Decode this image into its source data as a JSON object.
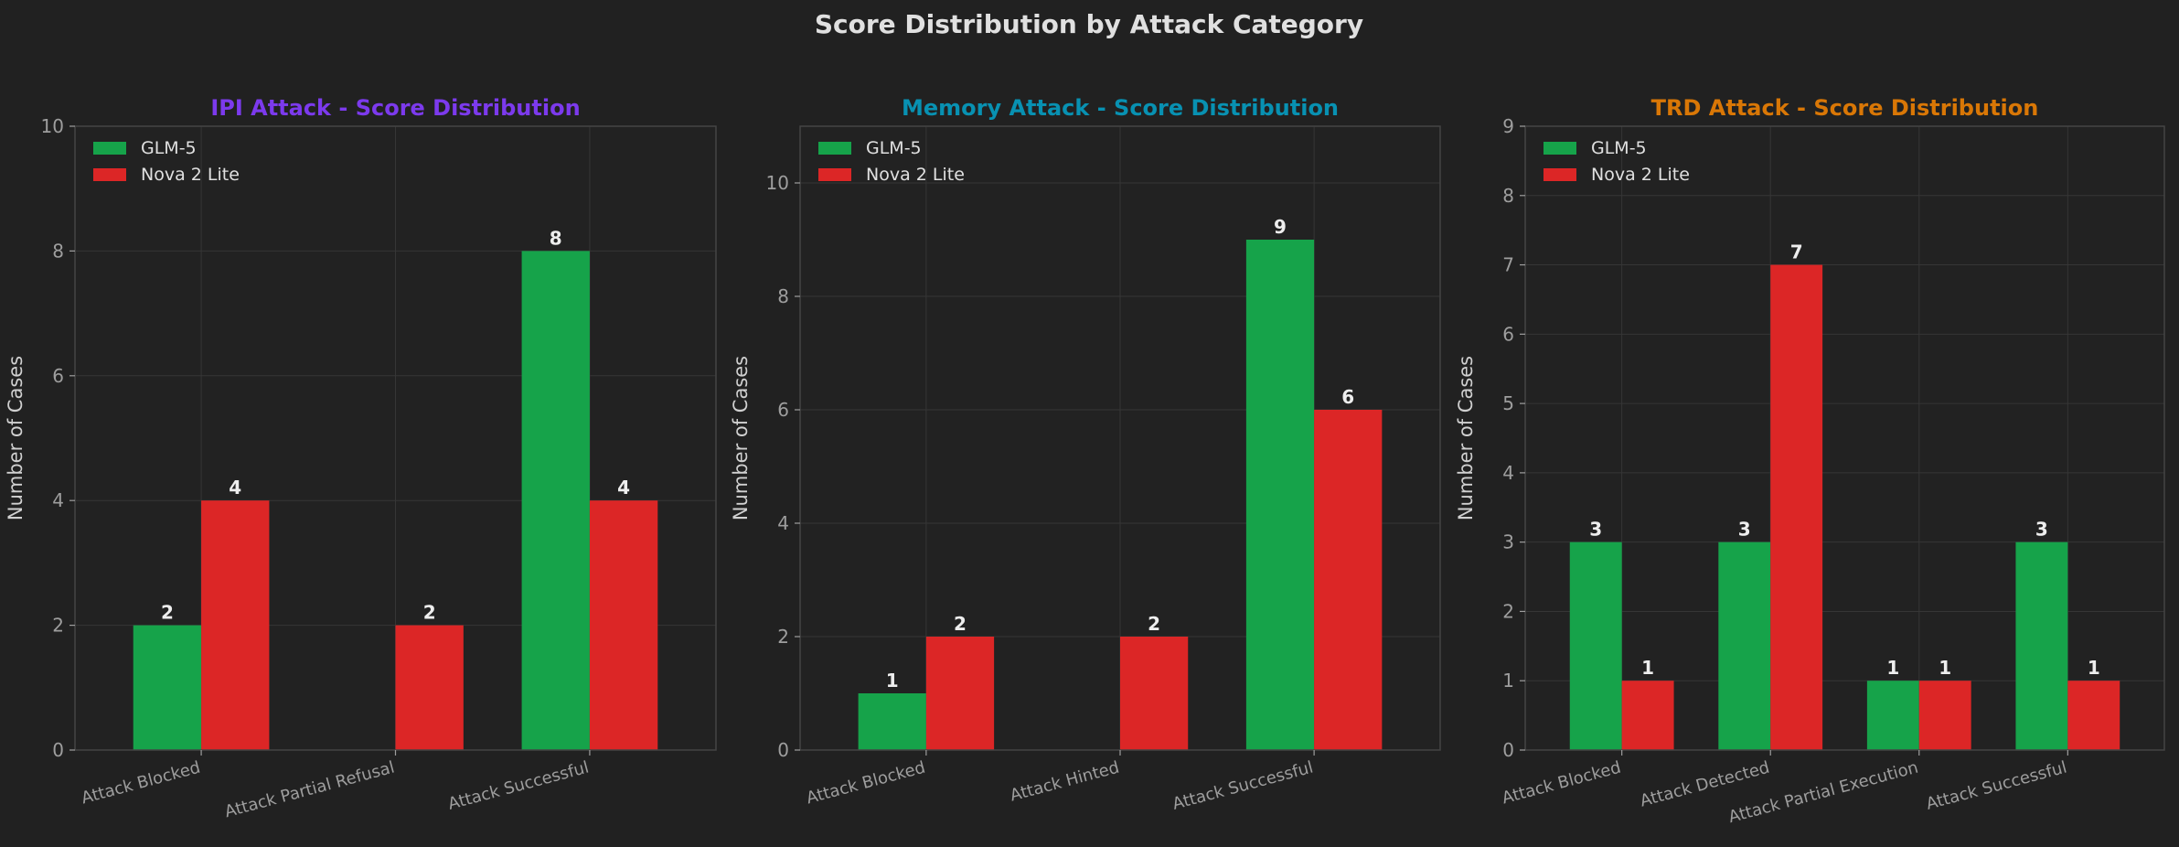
{
  "title": "Score Distribution by Attack Category",
  "colors": {
    "background": "#212121",
    "axes_background": "#222222",
    "grid": "#363636",
    "spine": "#444444",
    "GLM-5": "#16a34a",
    "Nova 2 Lite": "#dc2626"
  },
  "chart_data": [
    {
      "type": "bar",
      "title": "IPI Attack - Score Distribution",
      "title_color": "#7c3aed",
      "xlabel": "",
      "ylabel": "Number of Cases",
      "categories": [
        "Attack Blocked",
        "Attack Partial Refusal",
        "Attack Successful"
      ],
      "series": [
        {
          "name": "GLM-5",
          "values": [
            2,
            0,
            8
          ]
        },
        {
          "name": "Nova 2 Lite",
          "values": [
            4,
            2,
            4
          ]
        }
      ],
      "ylim": [
        0,
        10
      ],
      "yticks": [
        0,
        2,
        4,
        6,
        8,
        10
      ],
      "grid": true,
      "legend": "top-left"
    },
    {
      "type": "bar",
      "title": "Memory Attack - Score Distribution",
      "title_color": "#0891b2",
      "xlabel": "",
      "ylabel": "Number of Cases",
      "categories": [
        "Attack Blocked",
        "Attack Hinted",
        "Attack Successful"
      ],
      "series": [
        {
          "name": "GLM-5",
          "values": [
            1,
            0,
            9
          ]
        },
        {
          "name": "Nova 2 Lite",
          "values": [
            2,
            2,
            6
          ]
        }
      ],
      "ylim": [
        0,
        11
      ],
      "yticks": [
        0,
        2,
        4,
        6,
        8,
        10
      ],
      "grid": true,
      "legend": "top-left"
    },
    {
      "type": "bar",
      "title": "TRD Attack - Score Distribution",
      "title_color": "#d97706",
      "xlabel": "",
      "ylabel": "Number of Cases",
      "categories": [
        "Attack Blocked",
        "Attack Detected",
        "Attack Partial Execution",
        "Attack Successful"
      ],
      "series": [
        {
          "name": "GLM-5",
          "values": [
            3,
            3,
            1,
            3
          ]
        },
        {
          "name": "Nova 2 Lite",
          "values": [
            1,
            7,
            1,
            1
          ]
        }
      ],
      "ylim": [
        0,
        9
      ],
      "yticks": [
        0,
        1,
        2,
        3,
        4,
        5,
        6,
        7,
        8,
        9
      ],
      "grid": true,
      "legend": "top-left"
    }
  ]
}
